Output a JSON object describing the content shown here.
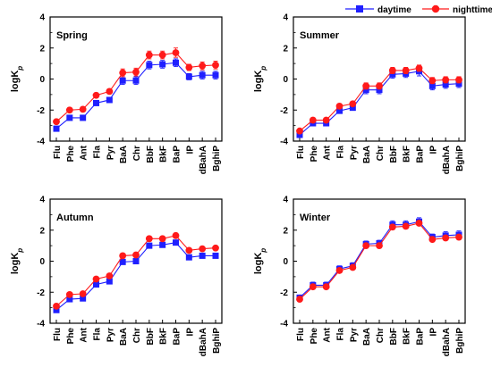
{
  "legend": {
    "placement": "top-right",
    "entries": [
      {
        "label": "daytime",
        "color": "#1f1fff",
        "marker": "square"
      },
      {
        "label": "nighttime",
        "color": "#ff1a1a",
        "marker": "circle"
      }
    ]
  },
  "ylabel_main": "logK",
  "ylabel_sub": "p",
  "chart_data": [
    {
      "type": "line",
      "title": "Spring",
      "categories": [
        "Flu",
        "Phe",
        "Ant",
        "Fla",
        "Pyr",
        "BaA",
        "Chr",
        "BbF",
        "BkF",
        "BaP",
        "IP",
        "dBahA",
        "BghiP"
      ],
      "ylim": [
        -4,
        4
      ],
      "yticks": [
        "-4",
        "-2",
        "0",
        "2",
        "4"
      ],
      "grid": false,
      "series": [
        {
          "name": "daytime",
          "values": [
            -3.2,
            -2.5,
            -2.5,
            -1.55,
            -1.35,
            -0.1,
            -0.1,
            0.9,
            0.95,
            1.05,
            0.15,
            0.25,
            0.25
          ],
          "errors": [
            0.12,
            0.15,
            0.15,
            0.15,
            0.15,
            0.25,
            0.25,
            0.25,
            0.25,
            0.25,
            0.2,
            0.25,
            0.25
          ]
        },
        {
          "name": "nighttime",
          "values": [
            -2.75,
            -2.0,
            -1.95,
            -1.05,
            -0.8,
            0.4,
            0.45,
            1.55,
            1.55,
            1.7,
            0.75,
            0.85,
            0.9
          ],
          "errors": [
            0.12,
            0.15,
            0.15,
            0.15,
            0.15,
            0.25,
            0.25,
            0.25,
            0.25,
            0.3,
            0.2,
            0.25,
            0.25
          ]
        }
      ]
    },
    {
      "type": "line",
      "title": "Summer",
      "categories": [
        "Flu",
        "Phe",
        "Ant",
        "Fla",
        "Pyr",
        "BaA",
        "Chr",
        "BbF",
        "BkF",
        "BaP",
        "IP",
        "dBahA",
        "BghiP"
      ],
      "ylim": [
        -4,
        4
      ],
      "yticks": [
        "-4",
        "-2",
        "0",
        "2",
        "4"
      ],
      "grid": false,
      "series": [
        {
          "name": "daytime",
          "values": [
            -3.6,
            -2.85,
            -2.85,
            -2.05,
            -1.85,
            -0.7,
            -0.7,
            0.3,
            0.35,
            0.5,
            -0.45,
            -0.35,
            -0.3
          ],
          "errors": [
            0.12,
            0.15,
            0.15,
            0.15,
            0.15,
            0.25,
            0.25,
            0.25,
            0.25,
            0.3,
            0.25,
            0.25,
            0.25
          ]
        },
        {
          "name": "nighttime",
          "values": [
            -3.35,
            -2.65,
            -2.65,
            -1.75,
            -1.6,
            -0.45,
            -0.45,
            0.55,
            0.55,
            0.7,
            -0.1,
            -0.05,
            -0.05
          ],
          "errors": [
            0.12,
            0.15,
            0.15,
            0.15,
            0.15,
            0.2,
            0.2,
            0.2,
            0.2,
            0.2,
            0.2,
            0.2,
            0.2
          ]
        }
      ]
    },
    {
      "type": "line",
      "title": "Autumn",
      "categories": [
        "Flu",
        "Phe",
        "Ant",
        "Fla",
        "Pyr",
        "BaA",
        "Chr",
        "BbF",
        "BkF",
        "BaP",
        "IP",
        "dBahA",
        "BghiP"
      ],
      "ylim": [
        -4,
        4
      ],
      "yticks": [
        "-4",
        "-2",
        "0",
        "2",
        "4"
      ],
      "grid": false,
      "series": [
        {
          "name": "daytime",
          "values": [
            -3.15,
            -2.45,
            -2.4,
            -1.5,
            -1.3,
            -0.05,
            0.0,
            1.0,
            1.05,
            1.2,
            0.25,
            0.35,
            0.35
          ],
          "errors": [
            0.1,
            0.12,
            0.12,
            0.12,
            0.12,
            0.15,
            0.15,
            0.15,
            0.15,
            0.15,
            0.12,
            0.12,
            0.12
          ]
        },
        {
          "name": "nighttime",
          "values": [
            -2.9,
            -2.15,
            -2.1,
            -1.15,
            -0.95,
            0.35,
            0.4,
            1.45,
            1.45,
            1.65,
            0.7,
            0.8,
            0.85
          ],
          "errors": [
            0.1,
            0.12,
            0.12,
            0.12,
            0.12,
            0.15,
            0.15,
            0.15,
            0.15,
            0.15,
            0.12,
            0.12,
            0.12
          ]
        }
      ]
    },
    {
      "type": "line",
      "title": "Winter",
      "categories": [
        "Flu",
        "Phe",
        "Ant",
        "Fla",
        "Pyr",
        "BaA",
        "Chr",
        "BbF",
        "BkF",
        "BaP",
        "IP",
        "dBahA",
        "BghiP"
      ],
      "ylim": [
        -4,
        4
      ],
      "yticks": [
        "-4",
        "-2",
        "0",
        "2",
        "4"
      ],
      "grid": false,
      "series": [
        {
          "name": "daytime",
          "values": [
            -2.35,
            -1.55,
            -1.55,
            -0.5,
            -0.3,
            1.1,
            1.15,
            2.35,
            2.35,
            2.55,
            1.55,
            1.65,
            1.7
          ],
          "errors": [
            0.15,
            0.2,
            0.2,
            0.2,
            0.2,
            0.2,
            0.2,
            0.25,
            0.25,
            0.25,
            0.2,
            0.25,
            0.25
          ]
        },
        {
          "name": "nighttime",
          "values": [
            -2.45,
            -1.65,
            -1.65,
            -0.6,
            -0.4,
            1.0,
            1.0,
            2.2,
            2.25,
            2.45,
            1.4,
            1.5,
            1.55
          ],
          "errors": [
            0.12,
            0.15,
            0.15,
            0.15,
            0.15,
            0.15,
            0.15,
            0.15,
            0.15,
            0.15,
            0.15,
            0.15,
            0.15
          ]
        }
      ]
    }
  ]
}
